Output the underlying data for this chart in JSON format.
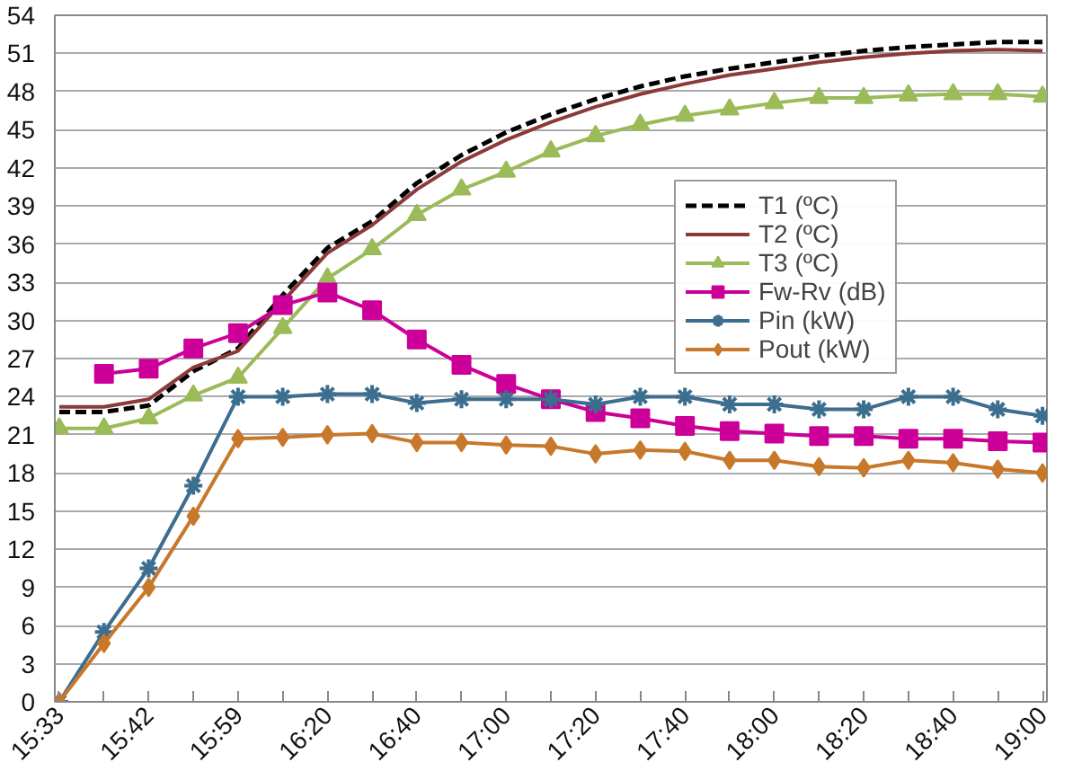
{
  "chart_data": {
    "type": "line",
    "categories": [
      "15:33",
      null,
      "15:42",
      null,
      "15:59",
      null,
      "16:20",
      null,
      "16:40",
      null,
      "17:00",
      null,
      "17:20",
      null,
      "17:40",
      null,
      "18:00",
      null,
      "18:20",
      null,
      "18:40",
      null,
      "19:00"
    ],
    "ylim": [
      0,
      54
    ],
    "yticks": [
      0,
      3,
      6,
      9,
      12,
      15,
      18,
      21,
      24,
      27,
      30,
      33,
      36,
      39,
      42,
      45,
      48,
      51,
      54
    ],
    "grid": "y",
    "legend": "right",
    "series": [
      {
        "name": "T1 (ºC)",
        "color": "#000000",
        "marker": "none",
        "line_style": "dashed",
        "values": [
          22.8,
          22.8,
          23.3,
          26.0,
          27.8,
          32.0,
          35.7,
          37.8,
          40.8,
          43.0,
          44.8,
          46.2,
          47.4,
          48.4,
          49.2,
          49.8,
          50.3,
          50.8,
          51.2,
          51.5,
          51.7,
          51.9,
          51.9
        ]
      },
      {
        "name": "T2 (ºC)",
        "color": "#8b3a3a",
        "marker": "none",
        "line_style": "solid",
        "values": [
          23.2,
          23.2,
          23.8,
          26.3,
          27.6,
          31.5,
          35.3,
          37.5,
          40.3,
          42.5,
          44.2,
          45.6,
          46.8,
          47.8,
          48.6,
          49.3,
          49.8,
          50.3,
          50.7,
          51.0,
          51.2,
          51.3,
          51.2
        ]
      },
      {
        "name": "T3 (ºC)",
        "color": "#9bbb59",
        "marker": "triangle",
        "line_style": "solid",
        "values": [
          21.5,
          21.5,
          22.3,
          24.1,
          25.5,
          29.4,
          33.3,
          35.6,
          38.3,
          40.3,
          41.7,
          43.3,
          44.5,
          45.4,
          46.1,
          46.6,
          47.1,
          47.5,
          47.5,
          47.7,
          47.8,
          47.8,
          47.6
        ]
      },
      {
        "name": "Fw-Rv (dB)",
        "color": "#cc0099",
        "marker": "square",
        "line_style": "solid",
        "values": [
          null,
          25.8,
          26.2,
          27.8,
          29.0,
          31.2,
          32.2,
          30.8,
          28.5,
          26.5,
          25.0,
          23.8,
          22.8,
          22.3,
          21.7,
          21.3,
          21.1,
          20.9,
          20.9,
          20.7,
          20.7,
          20.5,
          20.4
        ]
      },
      {
        "name": "Pin (kW)",
        "color": "#3b6e8f",
        "marker": "cross",
        "line_style": "solid",
        "values": [
          0,
          5.5,
          10.5,
          17.0,
          24.0,
          24.0,
          24.2,
          24.2,
          23.5,
          23.8,
          23.8,
          23.8,
          23.4,
          24.0,
          24.0,
          23.4,
          23.4,
          23.0,
          23.0,
          24.0,
          24.0,
          23.0,
          22.5
        ]
      },
      {
        "name": "Pout (kW)",
        "color": "#c8782a",
        "marker": "diamond",
        "line_style": "solid",
        "values": [
          0,
          4.6,
          9.0,
          14.6,
          20.7,
          20.8,
          21.0,
          21.1,
          20.4,
          20.4,
          20.2,
          20.1,
          19.5,
          19.8,
          19.7,
          19.0,
          19.0,
          18.5,
          18.4,
          19.0,
          18.8,
          18.3,
          18.0
        ]
      }
    ]
  }
}
